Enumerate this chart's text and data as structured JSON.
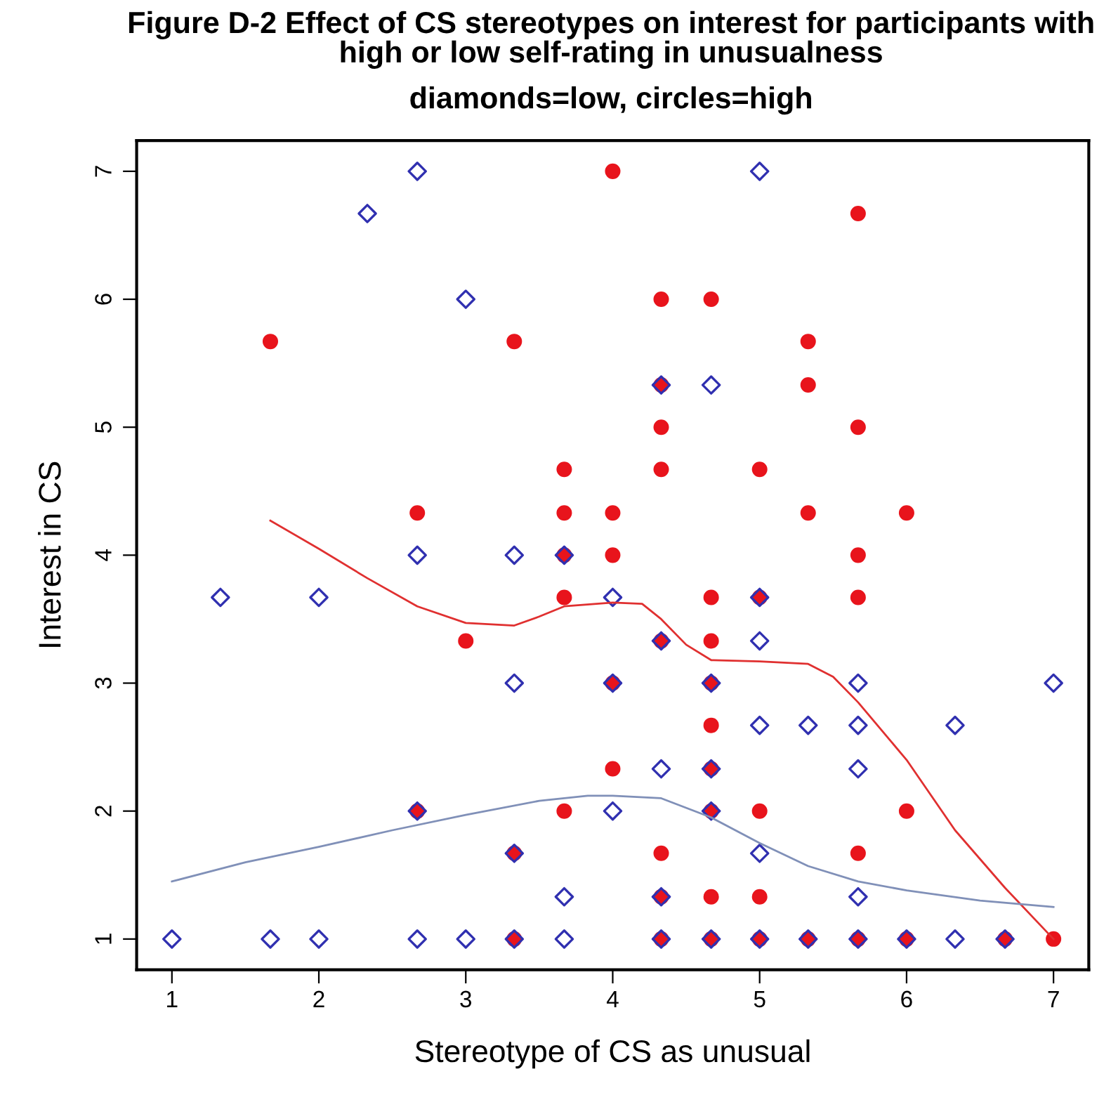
{
  "chart_data": {
    "type": "scatter",
    "title": "Figure D-2 Effect of CS stereotypes on interest for participants with high or low self-rating in unusualness",
    "subtitle": "diamonds=low, circles=high",
    "xlabel": "Stereotype of CS as unusual",
    "ylabel": "Interest in CS",
    "xlim": [
      0.76,
      7.24
    ],
    "ylim": [
      0.76,
      7.24
    ],
    "xticks": [
      1,
      2,
      3,
      4,
      5,
      6,
      7
    ],
    "yticks": [
      1,
      2,
      3,
      4,
      5,
      6,
      7
    ],
    "grid": false,
    "legend": false,
    "series": [
      {
        "type": "scatter",
        "marker": "circle",
        "color": "#e8141c",
        "x": [
          1.67,
          2.67,
          2.67,
          3,
          3.33,
          3.33,
          3.33,
          3.67,
          3.67,
          3.67,
          3.67,
          3.67,
          4,
          4,
          4,
          4,
          4,
          4.33,
          4.33,
          4.33,
          4.33,
          4.33,
          4.33,
          4.33,
          4.33,
          4.67,
          4.67,
          4.67,
          4.67,
          4.67,
          4.67,
          4.67,
          4.67,
          4.67,
          5,
          5,
          5,
          5,
          5,
          5.33,
          5.33,
          5.33,
          5.33,
          5.67,
          5.67,
          5.67,
          5.67,
          5.67,
          5.67,
          6,
          6,
          6,
          6.67,
          7
        ],
        "values": [
          5.67,
          4.33,
          2,
          3.33,
          5.67,
          1.67,
          1,
          4.67,
          4.33,
          4,
          3.67,
          2,
          7,
          4.33,
          4,
          3,
          2.33,
          6,
          5.33,
          5,
          4.67,
          3.33,
          1.67,
          1.33,
          1,
          6,
          3.67,
          3.33,
          3,
          2.67,
          2.33,
          2,
          1.33,
          1,
          4.67,
          3.67,
          2,
          1.33,
          1,
          5.67,
          5.33,
          4.33,
          1,
          6.67,
          5,
          4,
          3.67,
          1.67,
          1,
          4.33,
          2,
          1,
          1,
          1
        ]
      },
      {
        "type": "scatter",
        "marker": "diamond",
        "color": "#3030b0",
        "x": [
          1,
          1.33,
          1.67,
          2,
          2,
          2.33,
          2.67,
          2.67,
          2.67,
          2.67,
          3,
          3,
          3.33,
          3.33,
          3.33,
          3.33,
          3.67,
          3.67,
          3.67,
          4,
          4,
          4,
          4.33,
          4.33,
          4.33,
          4.33,
          4.33,
          4.67,
          4.67,
          4.67,
          4.67,
          4.67,
          5,
          5,
          5,
          5,
          5,
          5,
          5.33,
          5.33,
          5.67,
          5.67,
          5.67,
          5.67,
          5.67,
          6,
          6.33,
          6.33,
          6.67,
          7
        ],
        "values": [
          1,
          3.67,
          1,
          3.67,
          1,
          6.67,
          7,
          4,
          2,
          1,
          6,
          1,
          4,
          3,
          1.67,
          1,
          4,
          1.33,
          1,
          3.67,
          3,
          2,
          5.33,
          3.33,
          2.33,
          1.33,
          1,
          5.33,
          3,
          2.33,
          2,
          1,
          7,
          3.67,
          3.33,
          2.67,
          1.67,
          1,
          2.67,
          1,
          3,
          2.67,
          2.33,
          1.33,
          1,
          1,
          2.67,
          1,
          1,
          3
        ]
      },
      {
        "type": "line",
        "marker": "none",
        "color": "#e03030",
        "x": [
          1.67,
          2,
          2.33,
          2.67,
          3,
          3.33,
          3.5,
          3.67,
          4,
          4.2,
          4.33,
          4.5,
          4.67,
          5,
          5.33,
          5.5,
          5.67,
          6,
          6.33,
          6.67,
          7
        ],
        "values": [
          4.27,
          4.05,
          3.82,
          3.6,
          3.47,
          3.45,
          3.52,
          3.6,
          3.63,
          3.62,
          3.5,
          3.3,
          3.18,
          3.17,
          3.15,
          3.05,
          2.85,
          2.4,
          1.85,
          1.4,
          1.0
        ]
      },
      {
        "type": "line",
        "marker": "none",
        "color": "#8090b8",
        "x": [
          1,
          1.5,
          2,
          2.5,
          3,
          3.5,
          3.83,
          4,
          4.33,
          4.67,
          5,
          5.33,
          5.67,
          6,
          6.5,
          7
        ],
        "values": [
          1.45,
          1.6,
          1.72,
          1.85,
          1.97,
          2.08,
          2.12,
          2.12,
          2.1,
          1.95,
          1.75,
          1.57,
          1.45,
          1.38,
          1.3,
          1.25
        ]
      }
    ]
  }
}
